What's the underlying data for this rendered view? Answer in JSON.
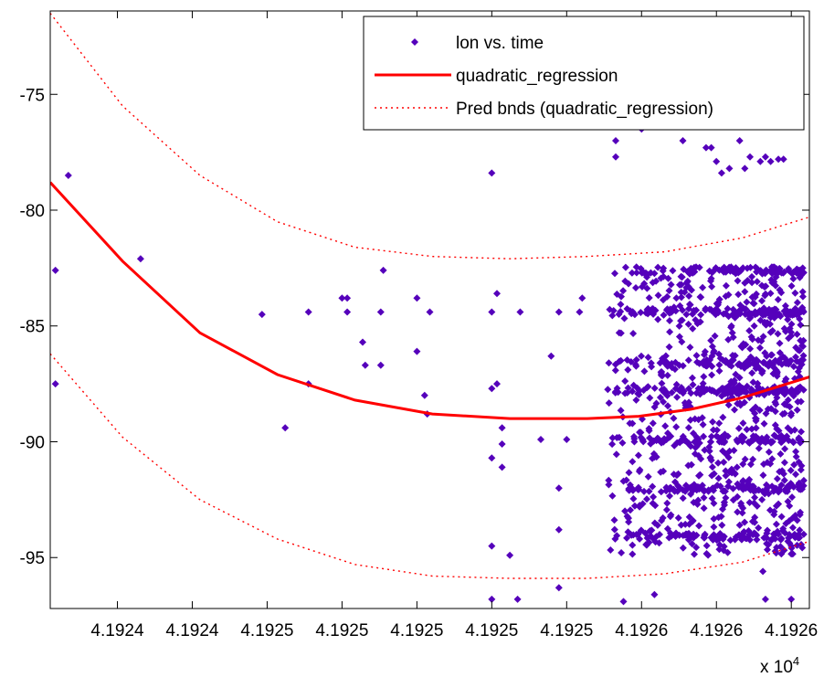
{
  "chart_data": {
    "type": "scatter",
    "title": "",
    "xlabel": "",
    "ylabel": "",
    "x_exponent_label": "x 10",
    "x_exponent_power": "4",
    "xlim": [
      4.192322,
      4.192616
    ],
    "ylim": [
      -97.2,
      -71.4
    ],
    "y_ticks": [
      -75,
      -80,
      -85,
      -90,
      -95
    ],
    "x_ticks": [
      {
        "value": 4.192348,
        "label": "4.1924"
      },
      {
        "value": 4.192377,
        "label": "4.1924"
      },
      {
        "value": 4.192406,
        "label": "4.1925"
      },
      {
        "value": 4.192435,
        "label": "4.1925"
      },
      {
        "value": 4.192464,
        "label": "4.1925"
      },
      {
        "value": 4.192493,
        "label": "4.1925"
      },
      {
        "value": 4.192522,
        "label": "4.1925"
      },
      {
        "value": 4.192551,
        "label": "4.1926"
      },
      {
        "value": 4.19258,
        "label": "4.1926"
      },
      {
        "value": 4.192609,
        "label": "4.1926"
      }
    ],
    "grid": false,
    "legend_position": "top-right",
    "legend": [
      {
        "label": "lon vs. time",
        "style": "marker"
      },
      {
        "label": "quadratic_regression",
        "style": "line"
      },
      {
        "label": "Pred bnds (quadratic_regression)",
        "style": "dotted"
      }
    ],
    "colors": {
      "points": "#5500bb",
      "fit": "#ff0000",
      "bounds": "#ff0000"
    },
    "fit_curve": {
      "x": [
        4.192322,
        4.19235,
        4.19238,
        4.19241,
        4.19244,
        4.19247,
        4.1925,
        4.19253,
        4.19255,
        4.19257,
        4.19259,
        4.192616
      ],
      "y": [
        -78.8,
        -82.2,
        -85.3,
        -87.1,
        -88.2,
        -88.8,
        -89.0,
        -89.0,
        -88.9,
        -88.6,
        -88.1,
        -87.2
      ]
    },
    "upper_bound": {
      "x": [
        4.192322,
        4.19235,
        4.19238,
        4.19241,
        4.19244,
        4.19247,
        4.1925,
        4.19253,
        4.19256,
        4.19259,
        4.192616
      ],
      "y": [
        -71.5,
        -75.5,
        -78.5,
        -80.5,
        -81.6,
        -82.0,
        -82.1,
        -82.0,
        -81.8,
        -81.2,
        -80.3
      ]
    },
    "lower_bound": {
      "x": [
        4.192322,
        4.19235,
        4.19238,
        4.19241,
        4.19244,
        4.19247,
        4.1925,
        4.19253,
        4.19256,
        4.19259,
        4.192616
      ],
      "y": [
        -86.2,
        -89.8,
        -92.5,
        -94.2,
        -95.3,
        -95.8,
        -95.9,
        -95.9,
        -95.7,
        -95.2,
        -94.3
      ]
    },
    "sparse_points": [
      [
        4.192324,
        -82.6
      ],
      [
        4.192324,
        -87.5
      ],
      [
        4.192329,
        -78.5
      ],
      [
        4.192357,
        -82.1
      ],
      [
        4.192404,
        -84.5
      ],
      [
        4.192413,
        -89.4
      ],
      [
        4.192422,
        -84.4
      ],
      [
        4.192422,
        -87.5
      ],
      [
        4.192435,
        -83.8
      ],
      [
        4.192437,
        -84.4
      ],
      [
        4.192437,
        -83.8
      ],
      [
        4.192443,
        -85.7
      ],
      [
        4.192444,
        -86.7
      ],
      [
        4.19245,
        -84.4
      ],
      [
        4.19245,
        -86.7
      ],
      [
        4.192451,
        -82.6
      ],
      [
        4.192464,
        -83.8
      ],
      [
        4.192464,
        -86.1
      ],
      [
        4.192467,
        -88.0
      ],
      [
        4.192468,
        -88.8
      ],
      [
        4.192469,
        -84.4
      ],
      [
        4.192493,
        -78.4
      ],
      [
        4.192493,
        -84.4
      ],
      [
        4.192493,
        -87.7
      ],
      [
        4.192493,
        -90.7
      ],
      [
        4.192493,
        -94.5
      ],
      [
        4.192493,
        -96.8
      ],
      [
        4.192495,
        -76.3
      ],
      [
        4.192495,
        -83.6
      ],
      [
        4.192495,
        -87.5
      ],
      [
        4.192497,
        -89.4
      ],
      [
        4.192497,
        -90.1
      ],
      [
        4.192497,
        -91.1
      ],
      [
        4.1925,
        -94.9
      ],
      [
        4.192503,
        -96.8
      ],
      [
        4.192504,
        -84.4
      ],
      [
        4.192512,
        -89.9
      ],
      [
        4.192516,
        -86.3
      ],
      [
        4.192519,
        -84.4
      ],
      [
        4.192519,
        -92.0
      ],
      [
        4.192519,
        -93.8
      ],
      [
        4.192519,
        -96.3
      ],
      [
        4.192522,
        -89.9
      ],
      [
        4.192527,
        -84.4
      ],
      [
        4.192528,
        -83.8
      ],
      [
        4.192541,
        -77.0
      ],
      [
        4.192541,
        -77.7
      ],
      [
        4.192544,
        -96.9
      ],
      [
        4.192551,
        -76.5
      ],
      [
        4.192556,
        -96.6
      ],
      [
        4.192567,
        -77.0
      ],
      [
        4.192576,
        -77.3
      ],
      [
        4.192578,
        -77.3
      ],
      [
        4.19258,
        -77.9
      ],
      [
        4.192582,
        -78.4
      ],
      [
        4.192585,
        -78.2
      ],
      [
        4.192589,
        -77.0
      ],
      [
        4.192591,
        -78.2
      ],
      [
        4.192593,
        -77.7
      ],
      [
        4.192597,
        -77.9
      ],
      [
        4.192599,
        -77.7
      ],
      [
        4.192601,
        -77.9
      ],
      [
        4.192604,
        -77.8
      ],
      [
        4.192606,
        -77.8
      ],
      [
        4.192598,
        -95.6
      ],
      [
        4.192599,
        -96.8
      ],
      [
        4.192609,
        -94.5
      ],
      [
        4.192609,
        -96.8
      ]
    ],
    "dense_region": {
      "x_range": [
        4.192537,
        4.192614
      ],
      "y_range": [
        -94.9,
        -82.6
      ],
      "approx_count": 1300,
      "band_levels": [
        -82.6,
        -84.4,
        -86.6,
        -87.8,
        -89.9,
        -92.0,
        -94.1
      ]
    }
  }
}
